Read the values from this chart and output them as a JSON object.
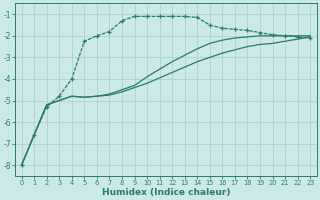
{
  "xlabel": "Humidex (Indice chaleur)",
  "xlim": [
    -0.5,
    23.5
  ],
  "ylim": [
    -8.5,
    -0.5
  ],
  "yticks": [
    -8,
    -7,
    -6,
    -5,
    -4,
    -3,
    -2,
    -1
  ],
  "xticks": [
    0,
    1,
    2,
    3,
    4,
    5,
    6,
    7,
    8,
    9,
    10,
    11,
    12,
    13,
    14,
    15,
    16,
    17,
    18,
    19,
    20,
    21,
    22,
    23
  ],
  "bg_color": "#cce8e8",
  "grid_color": "#aacccc",
  "line_color": "#2a7a70",
  "line1_x": [
    0,
    1,
    2,
    3,
    4,
    5,
    6,
    7,
    8,
    9,
    10,
    11,
    12,
    13,
    14,
    15,
    16,
    17,
    18,
    19,
    20,
    21,
    22,
    23
  ],
  "line1_y": [
    -8.0,
    -6.6,
    -5.2,
    -5.0,
    -4.8,
    -4.85,
    -4.8,
    -4.75,
    -4.6,
    -4.4,
    -4.2,
    -3.95,
    -3.7,
    -3.45,
    -3.2,
    -3.0,
    -2.8,
    -2.65,
    -2.5,
    -2.4,
    -2.35,
    -2.25,
    -2.15,
    -2.05
  ],
  "line2_x": [
    0,
    1,
    2,
    3,
    4,
    5,
    6,
    7,
    8,
    9,
    10,
    11,
    12,
    13,
    14,
    15,
    16,
    17,
    18,
    19,
    20,
    21,
    22,
    23
  ],
  "line2_y": [
    -8.0,
    -6.6,
    -5.2,
    -5.0,
    -4.8,
    -4.85,
    -4.8,
    -4.7,
    -4.5,
    -4.3,
    -3.9,
    -3.55,
    -3.2,
    -2.9,
    -2.6,
    -2.35,
    -2.2,
    -2.1,
    -2.05,
    -2.0,
    -2.0,
    -2.0,
    -2.0,
    -2.0
  ],
  "line3_x": [
    0,
    1,
    2,
    3,
    4,
    5,
    6,
    7,
    8,
    9,
    10,
    11,
    12,
    13,
    14,
    15,
    16,
    17,
    18,
    19,
    20,
    21,
    22,
    23
  ],
  "line3_y": [
    -8.0,
    -6.6,
    -5.3,
    -4.8,
    -4.0,
    -2.25,
    -2.0,
    -1.8,
    -1.3,
    -1.1,
    -1.1,
    -1.1,
    -1.1,
    -1.1,
    -1.15,
    -1.5,
    -1.65,
    -1.7,
    -1.75,
    -1.85,
    -1.95,
    -2.0,
    -2.05,
    -2.1
  ]
}
